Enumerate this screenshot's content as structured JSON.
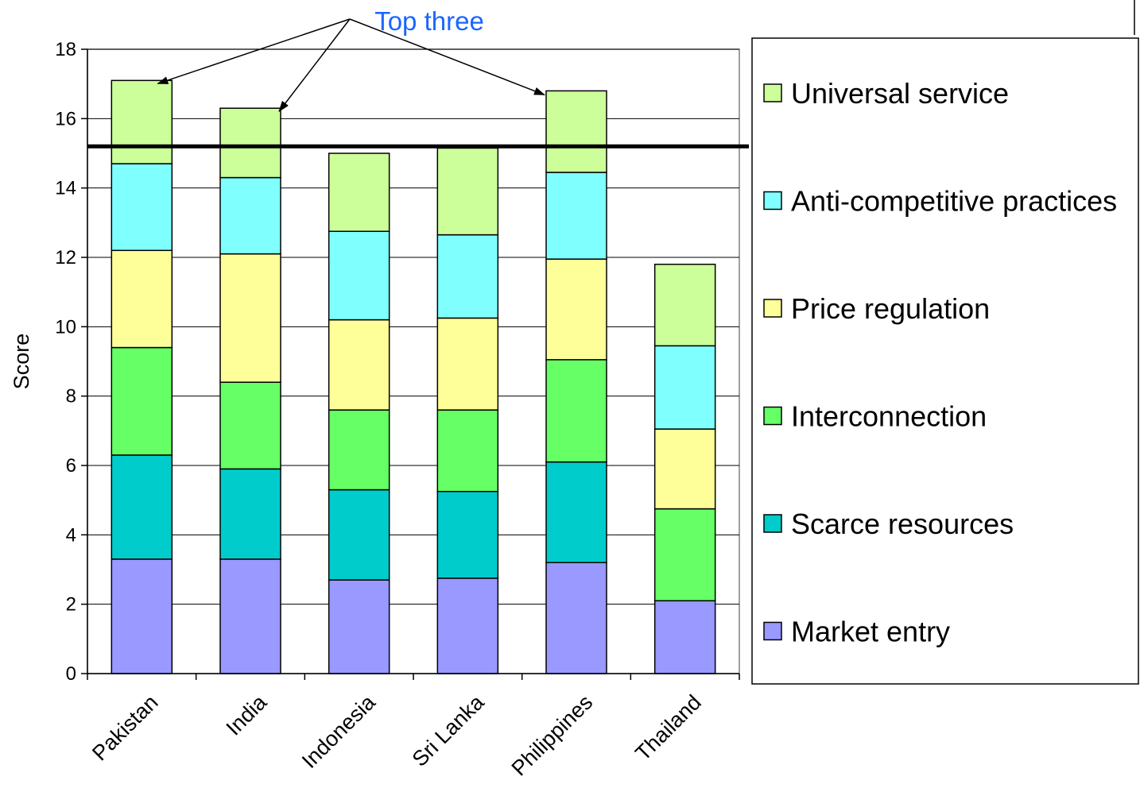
{
  "chart_data": {
    "type": "bar",
    "stacked": true,
    "categories": [
      "Pakistan",
      "India",
      "Indonesia",
      "Sri Lanka",
      "Philippines",
      "Thailand"
    ],
    "series": [
      {
        "name": "Market entry",
        "color": "#9999FF",
        "values": [
          3.3,
          3.3,
          2.7,
          2.75,
          3.2,
          2.1
        ]
      },
      {
        "name": "Scarce resources",
        "color": "#00CCCC",
        "values": [
          3.0,
          2.6,
          2.6,
          2.5,
          2.9,
          0.0
        ]
      },
      {
        "name": "Interconnection",
        "color": "#66FF66",
        "values": [
          3.1,
          2.5,
          2.3,
          2.35,
          2.95,
          2.65
        ]
      },
      {
        "name": "Price regulation",
        "color": "#FFFF99",
        "values": [
          2.8,
          3.7,
          2.6,
          2.65,
          2.9,
          2.3
        ]
      },
      {
        "name": "Anti-competitive practices",
        "color": "#80FFFF",
        "values": [
          2.5,
          2.2,
          2.55,
          2.4,
          2.5,
          2.4
        ]
      },
      {
        "name": "Universal service",
        "color": "#CCFF99",
        "values": [
          2.4,
          2.0,
          2.25,
          2.5,
          2.35,
          2.35
        ]
      }
    ],
    "ylabel": "Score",
    "xlabel": "",
    "title": "",
    "ylim": [
      0,
      18
    ],
    "yticks": [
      0,
      2,
      4,
      6,
      8,
      10,
      12,
      14,
      16,
      18
    ],
    "grid": true,
    "legend_position": "right",
    "threshold_line": 15.2,
    "annotation": {
      "text": "Top three",
      "color": "#1A66FF",
      "targets": [
        "Pakistan",
        "India",
        "Philippines"
      ]
    }
  }
}
